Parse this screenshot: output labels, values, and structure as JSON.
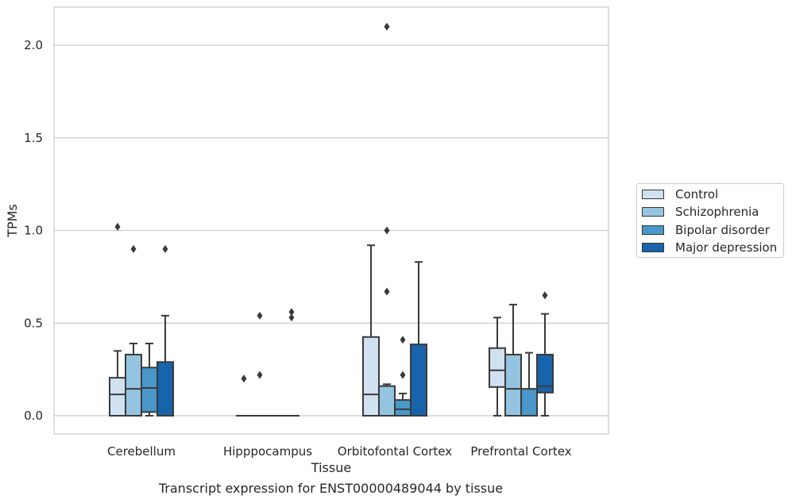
{
  "chart_data": {
    "type": "box",
    "title": "",
    "xlabel": "Tissue",
    "ylabel": "TPMs",
    "ylim": [
      -0.1,
      2.21
    ],
    "yticks": [
      0.0,
      0.5,
      1.0,
      1.5,
      2.0
    ],
    "ytick_labels": [
      "0.0",
      "0.5",
      "1.0",
      "1.5",
      "2.0"
    ],
    "grid": "horizontal",
    "legend_position": "right",
    "categories": [
      "Cerebellum",
      "Hipppocampus",
      "Orbitofontal Cortex",
      "Prefrontal Cortex"
    ],
    "series": [
      {
        "name": "Control",
        "color": "#d0e1f2",
        "boxes": [
          {
            "whislo": 0.0,
            "q1": 0.0,
            "med": 0.115,
            "q3": 0.205,
            "whishi": 0.35,
            "fliers": [
              1.02
            ]
          },
          {
            "whislo": 0.0,
            "q1": 0.0,
            "med": 0.0,
            "q3": 0.0,
            "whishi": 0.0,
            "fliers": [
              0.2
            ]
          },
          {
            "whislo": 0.0,
            "q1": 0.0,
            "med": 0.115,
            "q3": 0.425,
            "whishi": 0.92,
            "fliers": []
          },
          {
            "whislo": 0.0,
            "q1": 0.155,
            "med": 0.245,
            "q3": 0.365,
            "whishi": 0.53,
            "fliers": []
          }
        ]
      },
      {
        "name": "Schizophrenia",
        "color": "#94c4df",
        "boxes": [
          {
            "whislo": 0.0,
            "q1": 0.0,
            "med": 0.145,
            "q3": 0.33,
            "whishi": 0.39,
            "fliers": [
              0.9
            ]
          },
          {
            "whislo": 0.0,
            "q1": 0.0,
            "med": 0.0,
            "q3": 0.0,
            "whishi": 0.0,
            "fliers": [
              0.22,
              0.54
            ]
          },
          {
            "whislo": 0.0,
            "q1": 0.0,
            "med": 0.0,
            "q3": 0.16,
            "whishi": 0.17,
            "fliers": [
              0.67,
              1.0,
              2.1
            ]
          },
          {
            "whislo": 0.0,
            "q1": 0.0,
            "med": 0.145,
            "q3": 0.33,
            "whishi": 0.6,
            "fliers": []
          }
        ]
      },
      {
        "name": "Bipolar disorder",
        "color": "#4a98c9",
        "boxes": [
          {
            "whislo": 0.0,
            "q1": 0.02,
            "med": 0.15,
            "q3": 0.26,
            "whishi": 0.39,
            "fliers": []
          },
          {
            "whislo": 0.0,
            "q1": 0.0,
            "med": 0.0,
            "q3": 0.0,
            "whishi": 0.0,
            "fliers": []
          },
          {
            "whislo": 0.0,
            "q1": 0.0,
            "med": 0.035,
            "q3": 0.085,
            "whishi": 0.12,
            "fliers": [
              0.22,
              0.41
            ]
          },
          {
            "whislo": 0.0,
            "q1": 0.0,
            "med": 0.0,
            "q3": 0.145,
            "whishi": 0.34,
            "fliers": []
          }
        ]
      },
      {
        "name": "Major depression",
        "color": "#1764ab",
        "boxes": [
          {
            "whislo": 0.0,
            "q1": 0.0,
            "med": 0.0,
            "q3": 0.29,
            "whishi": 0.54,
            "fliers": [
              0.9
            ]
          },
          {
            "whislo": 0.0,
            "q1": 0.0,
            "med": 0.0,
            "q3": 0.0,
            "whishi": 0.0,
            "fliers": [
              0.53,
              0.56
            ]
          },
          {
            "whislo": 0.0,
            "q1": 0.0,
            "med": 0.0,
            "q3": 0.385,
            "whishi": 0.83,
            "fliers": []
          },
          {
            "whislo": 0.0,
            "q1": 0.125,
            "med": 0.16,
            "q3": 0.33,
            "whishi": 0.55,
            "fliers": [
              0.65
            ]
          }
        ]
      }
    ]
  },
  "caption": "Transcript expression for ENST00000489044 by tissue"
}
